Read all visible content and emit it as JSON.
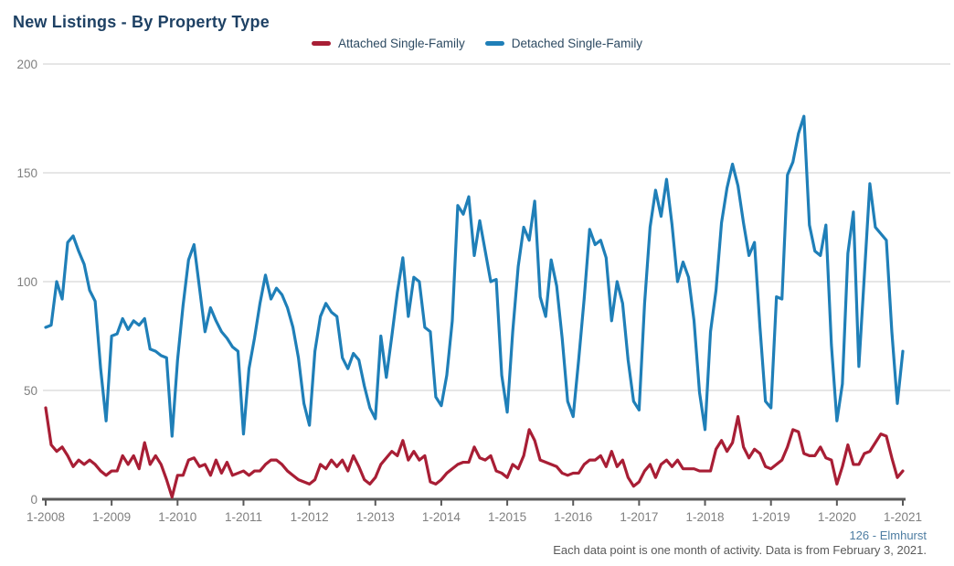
{
  "title": "New Listings - By Property Type",
  "legend": {
    "items": [
      {
        "label": "Attached Single-Family",
        "color": "#a81e35"
      },
      {
        "label": "Detached Single-Family",
        "color": "#1f7fb8"
      }
    ]
  },
  "footer": {
    "location_label": "126 - Elmhurst",
    "note": "Each data point is one month of activity. Data is from February 3, 2021."
  },
  "colors": {
    "title_text": "#1e4164",
    "legend_text": "#2d4a62",
    "axis_line": "#595959",
    "axis_tick_labels": "#7f7f7f",
    "gridline": "#d6d6d6",
    "attached_line": "#a81e35",
    "detached_line": "#1f7fb8",
    "location_text": "#4e7da2",
    "note_text": "#595959"
  },
  "chart_data": {
    "type": "line",
    "frequency": "monthly",
    "x_start_label": "1-2008",
    "x_end_label": "1-2021",
    "x_tick_labels": [
      "1-2008",
      "1-2009",
      "1-2010",
      "1-2011",
      "1-2012",
      "1-2013",
      "1-2014",
      "1-2015",
      "1-2016",
      "1-2017",
      "1-2018",
      "1-2019",
      "1-2020",
      "1-2021"
    ],
    "y_tick_labels": [
      0,
      50,
      100,
      150,
      200
    ],
    "ylim": [
      0,
      200
    ],
    "grid": "horizontal-only",
    "legend_position": "top-center",
    "series": [
      {
        "name": "Attached Single-Family",
        "color": "#a81e35",
        "values": [
          42,
          25,
          22,
          24,
          20,
          15,
          18,
          16,
          18,
          16,
          13,
          11,
          13,
          13,
          20,
          16,
          20,
          14,
          26,
          16,
          20,
          16,
          9,
          1,
          11,
          11,
          18,
          19,
          15,
          16,
          11,
          18,
          12,
          17,
          11,
          12,
          13,
          11,
          13,
          13,
          16,
          18,
          18,
          16,
          13,
          11,
          9,
          8,
          7,
          9,
          16,
          14,
          18,
          15,
          18,
          13,
          20,
          15,
          9,
          7,
          10,
          16,
          19,
          22,
          20,
          27,
          18,
          22,
          18,
          20,
          8,
          7,
          9,
          12,
          14,
          16,
          17,
          17,
          24,
          19,
          18,
          20,
          13,
          12,
          10,
          16,
          14,
          20,
          32,
          27,
          18,
          17,
          16,
          15,
          12,
          11,
          12,
          12,
          16,
          18,
          18,
          20,
          15,
          22,
          15,
          18,
          10,
          6,
          8,
          13,
          16,
          10,
          16,
          18,
          15,
          18,
          14,
          14,
          14,
          13,
          13,
          13,
          23,
          27,
          22,
          26,
          38,
          24,
          19,
          23,
          21,
          15,
          14,
          16,
          18,
          24,
          32,
          31,
          21,
          20,
          20,
          24,
          19,
          18,
          7,
          15,
          25,
          16,
          16,
          21,
          22,
          26,
          30,
          29,
          19,
          10,
          13
        ]
      },
      {
        "name": "Detached Single-Family",
        "color": "#1f7fb8",
        "values": [
          79,
          80,
          100,
          92,
          118,
          121,
          114,
          108,
          96,
          91,
          60,
          36,
          75,
          76,
          83,
          78,
          82,
          80,
          83,
          69,
          68,
          66,
          65,
          29,
          64,
          89,
          110,
          117,
          97,
          77,
          88,
          82,
          77,
          74,
          70,
          68,
          30,
          60,
          74,
          90,
          103,
          92,
          97,
          94,
          88,
          79,
          65,
          44,
          34,
          68,
          84,
          90,
          86,
          84,
          65,
          60,
          67,
          64,
          52,
          42,
          37,
          75,
          56,
          75,
          95,
          111,
          84,
          102,
          100,
          79,
          77,
          47,
          43,
          57,
          82,
          135,
          131,
          139,
          112,
          128,
          114,
          100,
          101,
          57,
          40,
          77,
          107,
          125,
          119,
          137,
          93,
          84,
          110,
          98,
          74,
          45,
          38,
          64,
          92,
          124,
          117,
          119,
          111,
          82,
          100,
          90,
          64,
          45,
          41,
          90,
          125,
          142,
          130,
          147,
          126,
          100,
          109,
          102,
          82,
          49,
          32,
          77,
          96,
          127,
          143,
          154,
          144,
          127,
          112,
          118,
          79,
          45,
          42,
          93,
          92,
          149,
          155,
          168,
          176,
          126,
          114,
          112,
          126,
          71,
          36,
          53,
          113,
          132,
          61,
          103,
          145,
          125,
          122,
          119,
          77,
          44,
          68
        ]
      }
    ]
  }
}
